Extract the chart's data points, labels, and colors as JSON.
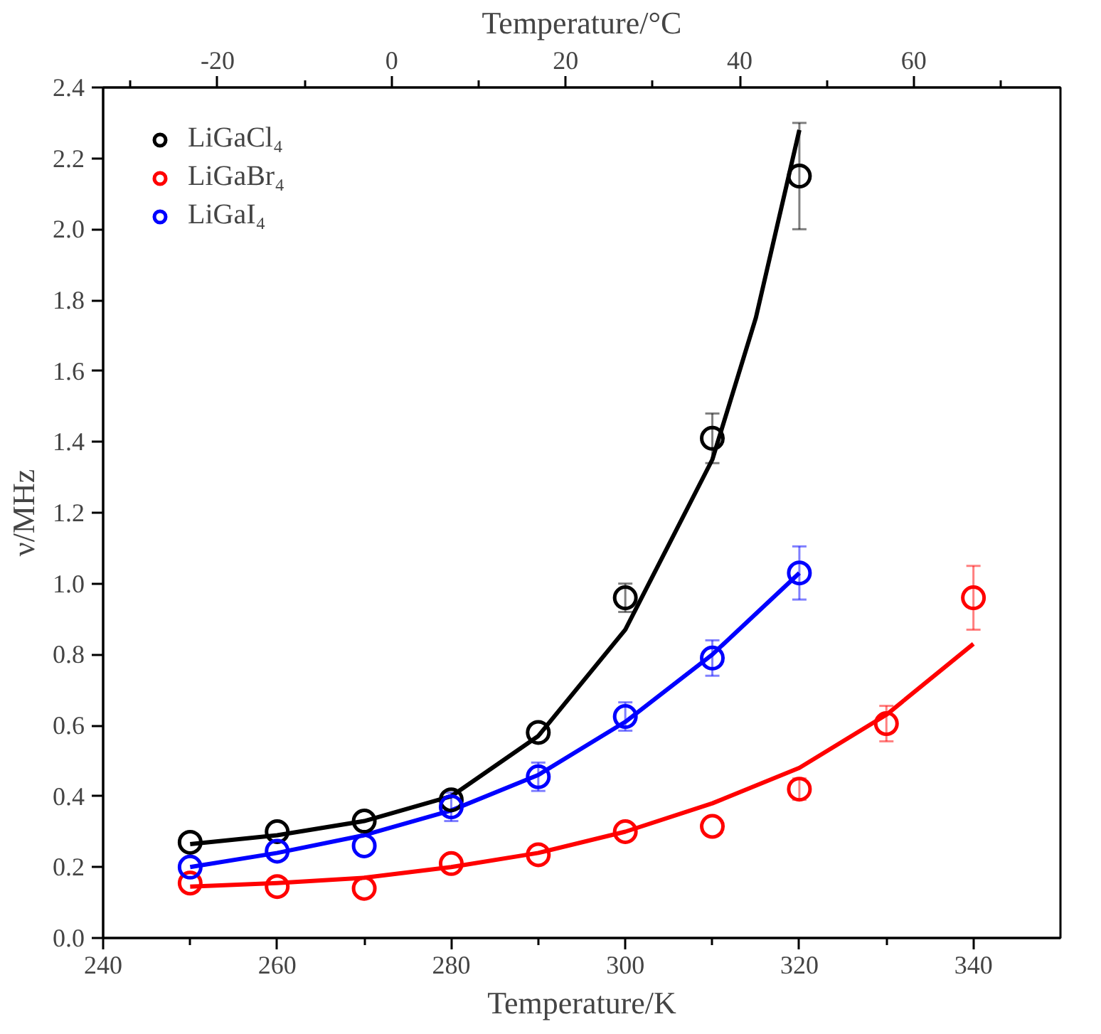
{
  "chart_data": {
    "type": "scatter",
    "xlabel": "Temperature/K",
    "ylabel": "ν/MHz",
    "x2label": "Temperature/°C",
    "xlim": [
      240,
      350
    ],
    "xticks": [
      240,
      {
        "value": 250,
        "label": null
      },
      260,
      {
        "value": 270,
        "label": null
      },
      280,
      {
        "value": 290,
        "label": null
      },
      300,
      {
        "value": 310,
        "label": null
      },
      320,
      {
        "value": 330,
        "label": null
      },
      340
    ],
    "x2lim": [
      -33.15,
      76.85
    ],
    "x2ticks": [
      {
        "value": -30,
        "label": null
      },
      -20,
      {
        "value": -10,
        "label": null
      },
      0,
      {
        "value": 10,
        "label": null
      },
      20,
      {
        "value": 30,
        "label": null
      },
      40,
      {
        "value": 50,
        "label": null
      },
      60,
      {
        "value": 70,
        "label": null
      }
    ],
    "ylim": [
      0,
      2.4
    ],
    "yticks": [
      {
        "value": 0,
        "label": "0.0"
      },
      0.2,
      0.4,
      0.6,
      0.8,
      {
        "value": 1,
        "label": "1.0"
      },
      1.2,
      1.4,
      1.6,
      1.8,
      {
        "value": 2,
        "label": "2.0"
      },
      2.2,
      2.4
    ],
    "grid": false,
    "legend": "top left",
    "marker": "circle",
    "series": [
      {
        "name": "LiGaCl₄",
        "color": "#000000",
        "x": [
          250,
          260,
          270,
          280,
          290,
          300,
          310,
          320
        ],
        "values": [
          0.27,
          0.3,
          0.33,
          0.39,
          0.58,
          0.96,
          1.41,
          2.15
        ],
        "errors": [
          null,
          null,
          null,
          null,
          null,
          0.04,
          0.07,
          0.15
        ]
      },
      {
        "name": "LiGaBr₄",
        "color": "#ff0000",
        "x": [
          250,
          260,
          270,
          280,
          290,
          300,
          310,
          320,
          330,
          340
        ],
        "values": [
          0.155,
          0.145,
          0.14,
          0.21,
          0.235,
          0.3,
          0.315,
          0.42,
          0.605,
          0.96
        ],
        "errors": [
          null,
          null,
          null,
          null,
          null,
          null,
          null,
          0.03,
          0.05,
          0.09
        ]
      },
      {
        "name": "LiGaI₄",
        "color": "#0000ff",
        "x": [
          250,
          260,
          270,
          280,
          290,
          300,
          310,
          320
        ],
        "values": [
          0.2,
          0.245,
          0.26,
          0.37,
          0.455,
          0.625,
          0.79,
          1.03
        ],
        "errors": [
          null,
          null,
          null,
          0.04,
          0.04,
          0.04,
          0.05,
          0.075
        ]
      },
      {
        "type": "line",
        "marker": "none",
        "color": "#000000",
        "x": [
          250,
          260,
          270,
          280,
          290,
          300,
          310,
          315,
          320
        ],
        "values": [
          0.265,
          0.29,
          0.33,
          0.4,
          0.57,
          0.87,
          1.35,
          1.75,
          2.28
        ]
      },
      {
        "type": "line",
        "marker": "none",
        "color": "#ff0000",
        "x": [
          250,
          260,
          270,
          280,
          290,
          300,
          310,
          320,
          330,
          340
        ],
        "values": [
          0.145,
          0.155,
          0.17,
          0.2,
          0.24,
          0.3,
          0.38,
          0.48,
          0.63,
          0.83
        ]
      },
      {
        "type": "line",
        "marker": "none",
        "color": "#0000ff",
        "x": [
          250,
          260,
          270,
          280,
          290,
          300,
          310,
          320
        ],
        "values": [
          0.2,
          0.24,
          0.29,
          0.36,
          0.46,
          0.61,
          0.8,
          1.03
        ]
      }
    ]
  }
}
